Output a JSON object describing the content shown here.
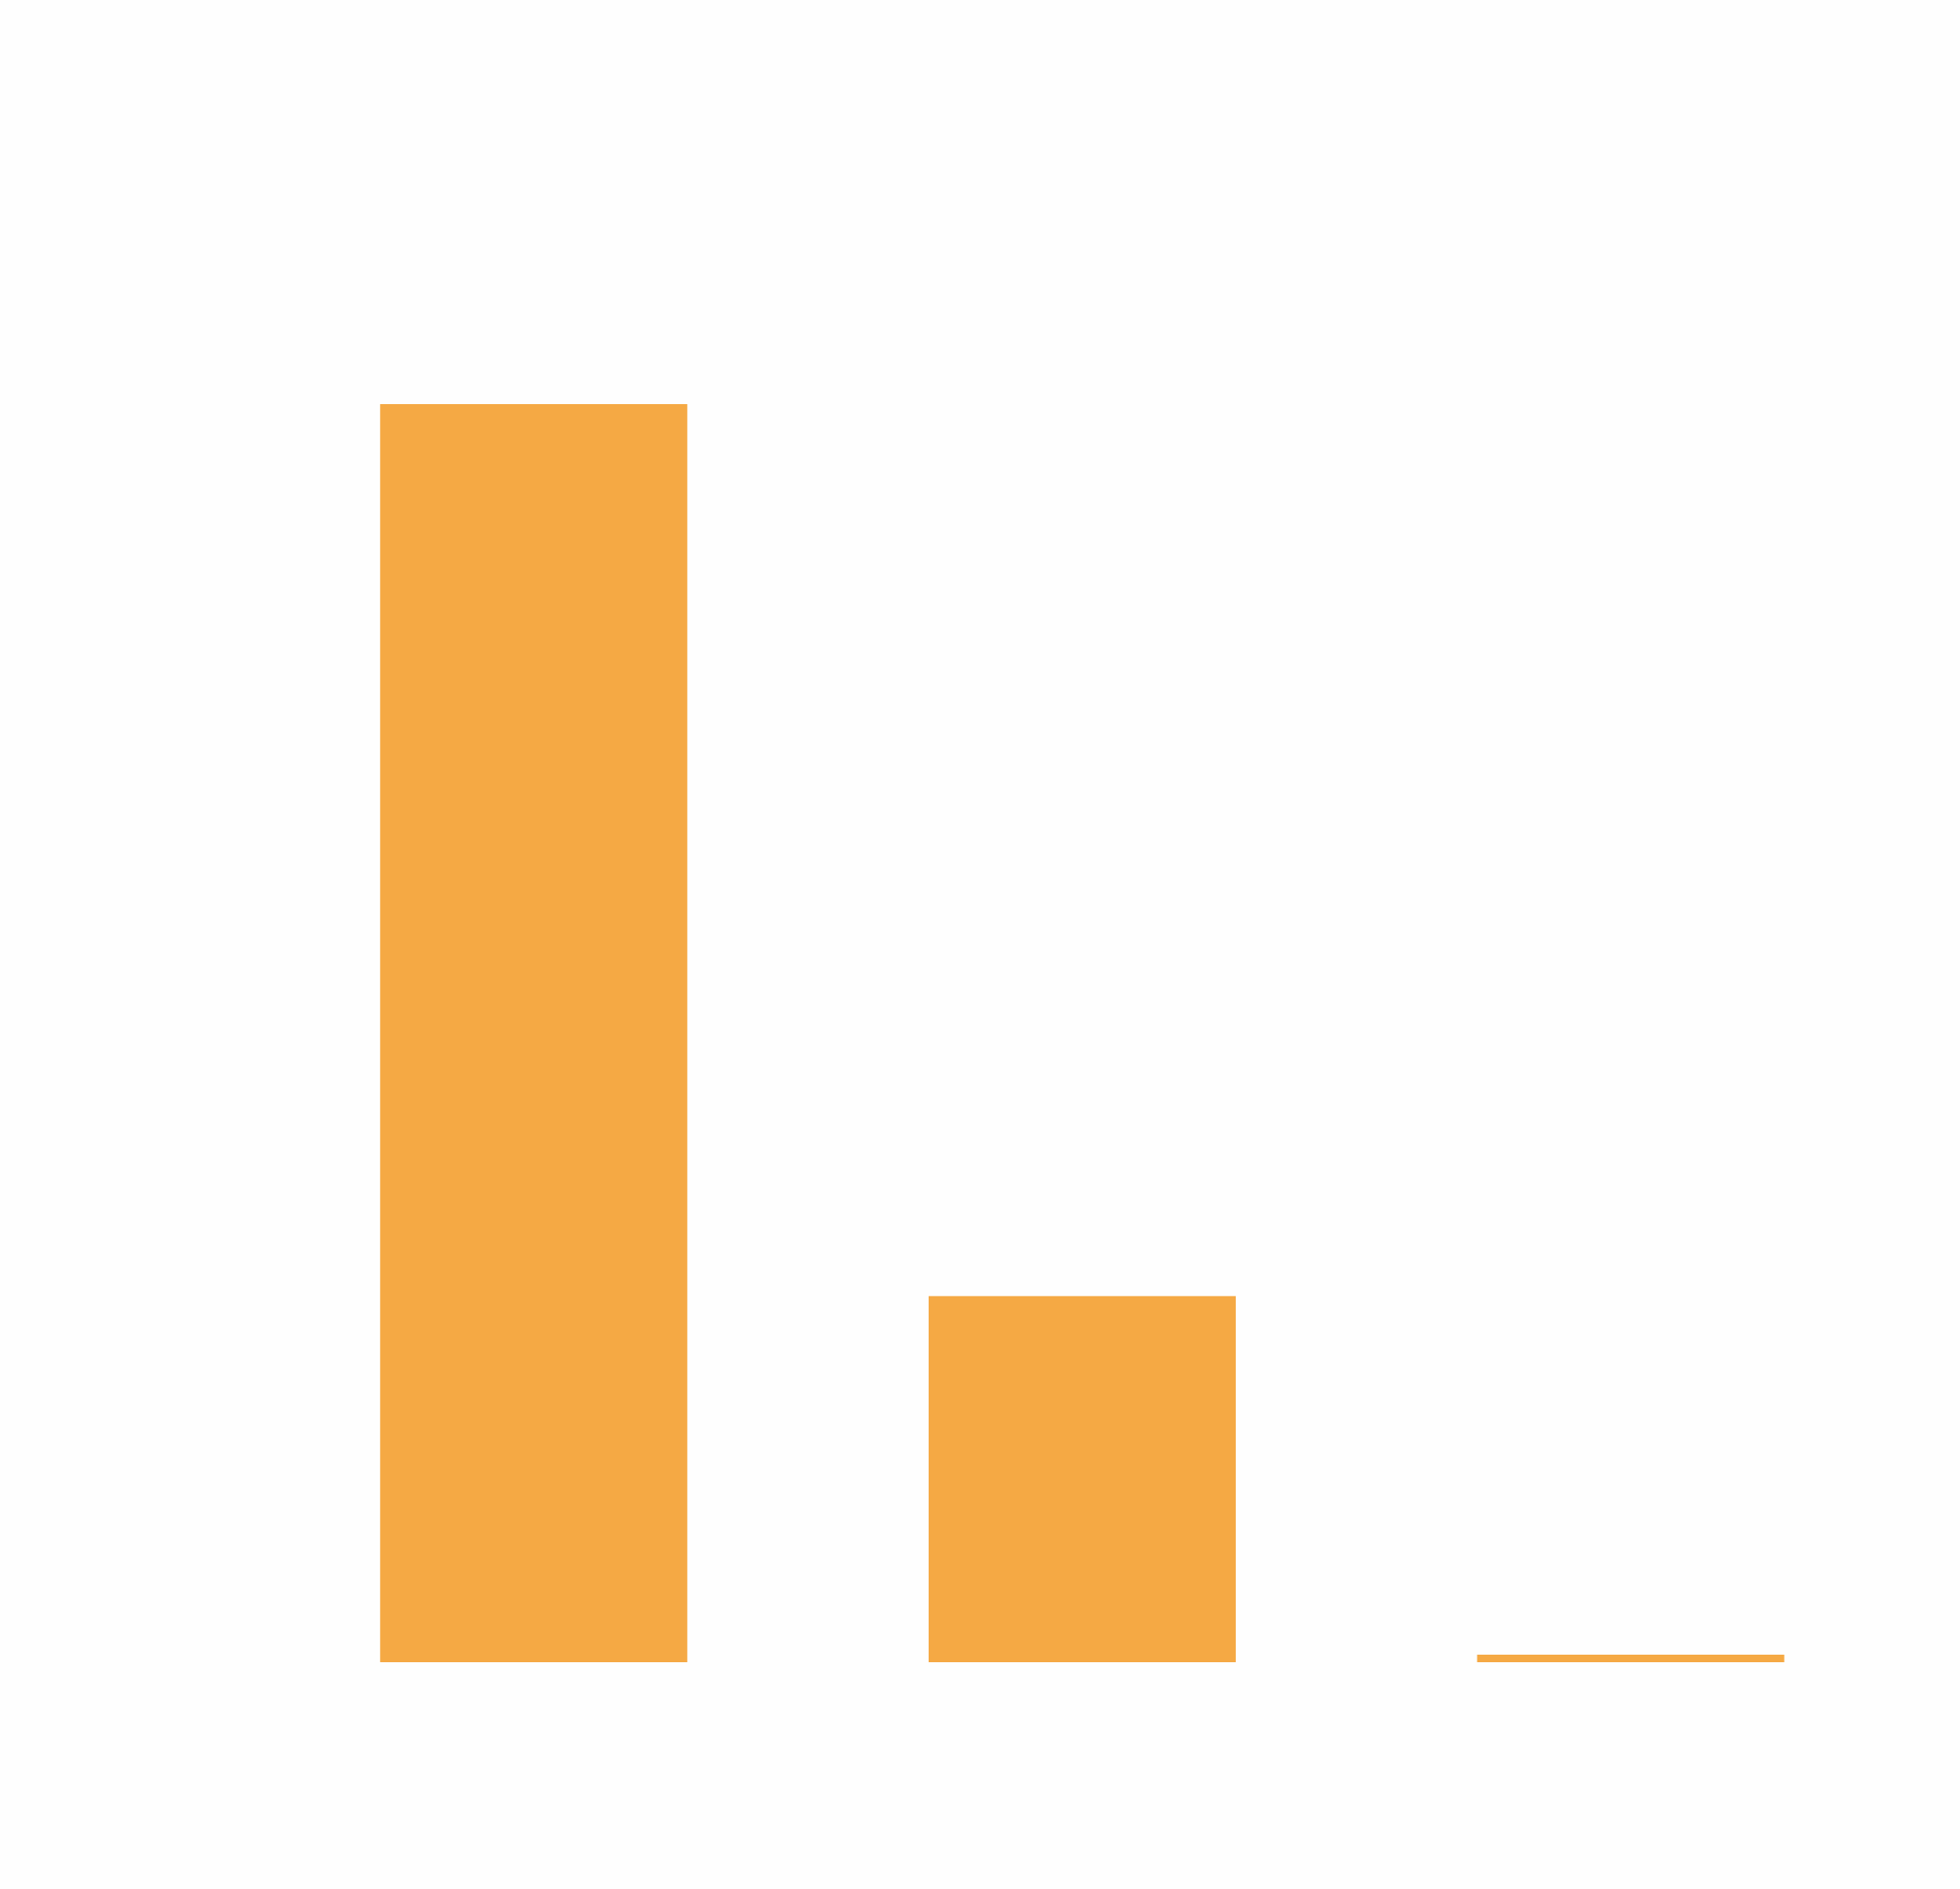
{
  "chart_data": {
    "type": "bar",
    "categories": [
      null,
      null,
      null
    ],
    "values": [
      100,
      29.1,
      0.6
    ],
    "color": "#f5a944",
    "ylim": [
      0,
      100
    ]
  }
}
